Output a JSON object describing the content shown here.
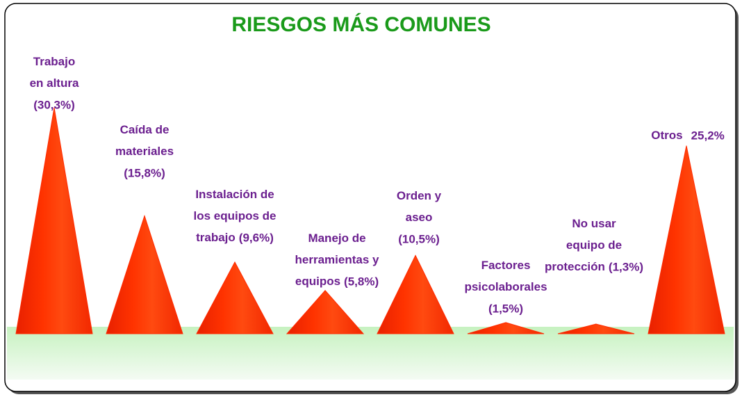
{
  "chart_data": {
    "type": "cone",
    "title": "RIESGOS MÁS COMUNES",
    "categories": [
      "Trabajo en altura",
      "Caída de materiales",
      "Instalación de los equipos de trabajo",
      "Manejo de herramientas y equipos",
      "Orden y aseo",
      "Factores psicolaborales",
      "No usar equipo de protección",
      "Otros"
    ],
    "values": [
      30.3,
      15.8,
      9.6,
      5.8,
      10.5,
      1.5,
      1.3,
      25.2
    ],
    "value_labels": [
      "(30,3%)",
      "(15,8%)",
      "(9,6%)",
      "(5,8%)",
      "(10,5%)",
      "(1,5%)",
      "(1,3%)",
      "25,2%"
    ],
    "color": "#ff2a00"
  }
}
